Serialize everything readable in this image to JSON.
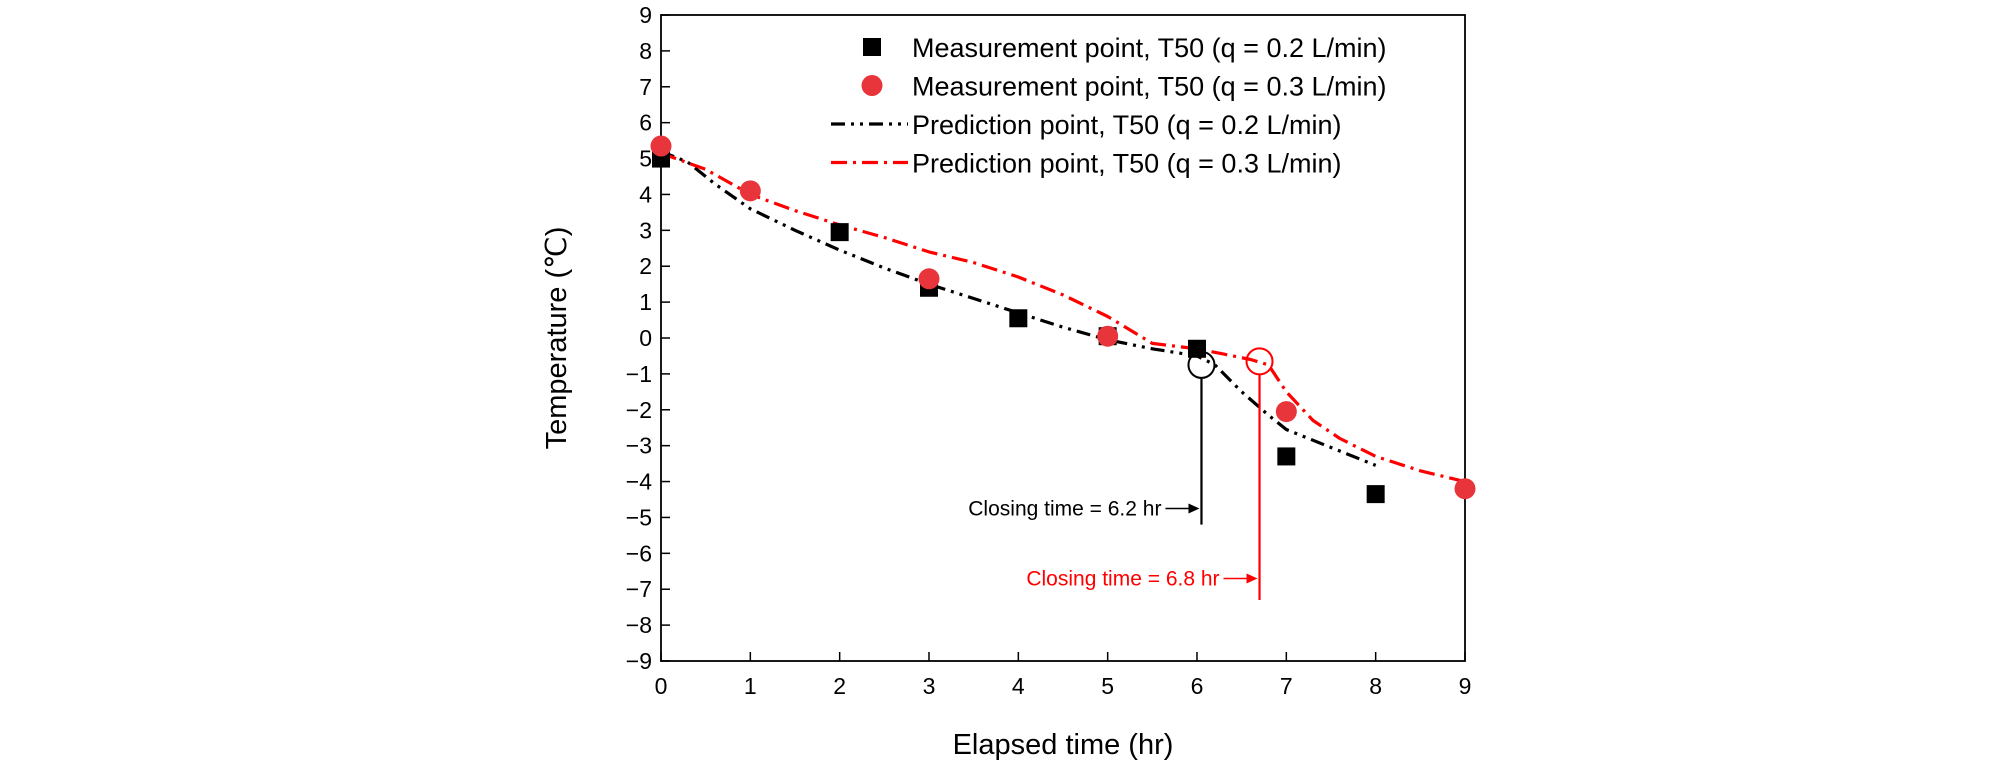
{
  "chart_data": {
    "type": "scatter",
    "xlabel": "Elapsed time (hr)",
    "ylabel": "Temperature (℃)",
    "xlim": [
      0,
      9
    ],
    "ylim": [
      -9,
      9
    ],
    "xticks": [
      0,
      1,
      2,
      3,
      4,
      5,
      6,
      7,
      8,
      9
    ],
    "yticks": [
      -9,
      -8,
      -7,
      -6,
      -5,
      -4,
      -3,
      -2,
      -1,
      0,
      1,
      2,
      3,
      4,
      5,
      6,
      7,
      8,
      9
    ],
    "grid": false,
    "legend_position": "top-right",
    "series": [
      {
        "name": "Measurement point, T50 (q = 0.2 L/min)",
        "kind": "marker",
        "marker": "square",
        "color": "#000000",
        "x": [
          0,
          2,
          3,
          4,
          5,
          6,
          7,
          8
        ],
        "y": [
          5.0,
          2.95,
          1.4,
          0.55,
          0.05,
          -0.3,
          -3.3,
          -4.35
        ]
      },
      {
        "name": "Measurement point, T50 (q = 0.3 L/min)",
        "kind": "marker",
        "marker": "circle",
        "color": "#e8353b",
        "x": [
          0,
          1,
          3,
          5,
          7,
          9
        ],
        "y": [
          5.35,
          4.1,
          1.65,
          0.05,
          -2.05,
          -4.2
        ]
      },
      {
        "name": "Prediction point, T50 (q = 0.2 L/min)",
        "kind": "line",
        "dash": "dash-dot-dot",
        "color": "#000000",
        "x": [
          0,
          0.3,
          0.6,
          1,
          1.5,
          2,
          2.5,
          3,
          3.5,
          4,
          4.5,
          5,
          5.5,
          6,
          6.2,
          6.5,
          6.8,
          7,
          7.5,
          8
        ],
        "y": [
          5.2,
          4.9,
          4.3,
          3.6,
          3.0,
          2.45,
          1.95,
          1.5,
          1.1,
          0.7,
          0.3,
          -0.05,
          -0.3,
          -0.5,
          -0.75,
          -1.5,
          -2.15,
          -2.55,
          -3.05,
          -3.55
        ]
      },
      {
        "name": "Prediction point, T50 (q = 0.3 L/min)",
        "kind": "line",
        "dash": "dash-dot",
        "color": "#ff0000",
        "x": [
          0,
          0.5,
          1,
          1.5,
          2,
          2.5,
          3,
          3.5,
          4,
          4.5,
          5,
          5.5,
          6,
          6.3,
          6.6,
          6.8,
          7,
          7.3,
          7.6,
          8,
          8.5,
          9
        ],
        "y": [
          5.15,
          4.7,
          4.0,
          3.55,
          3.15,
          2.8,
          2.4,
          2.1,
          1.7,
          1.2,
          0.6,
          -0.15,
          -0.3,
          -0.45,
          -0.6,
          -0.75,
          -1.5,
          -2.3,
          -2.8,
          -3.3,
          -3.7,
          -4.0
        ]
      }
    ],
    "annotations": [
      {
        "text": "Closing time = 6.2 hr",
        "color": "#000000",
        "marker_x": 6.05,
        "marker_y": -0.75,
        "line_to_y": -5.2,
        "label_y": -4.75
      },
      {
        "text": "Closing time = 6.8 hr",
        "color": "#ff0000",
        "marker_x": 6.7,
        "marker_y": -0.65,
        "line_to_y": -7.3,
        "label_y": -6.7
      }
    ]
  }
}
